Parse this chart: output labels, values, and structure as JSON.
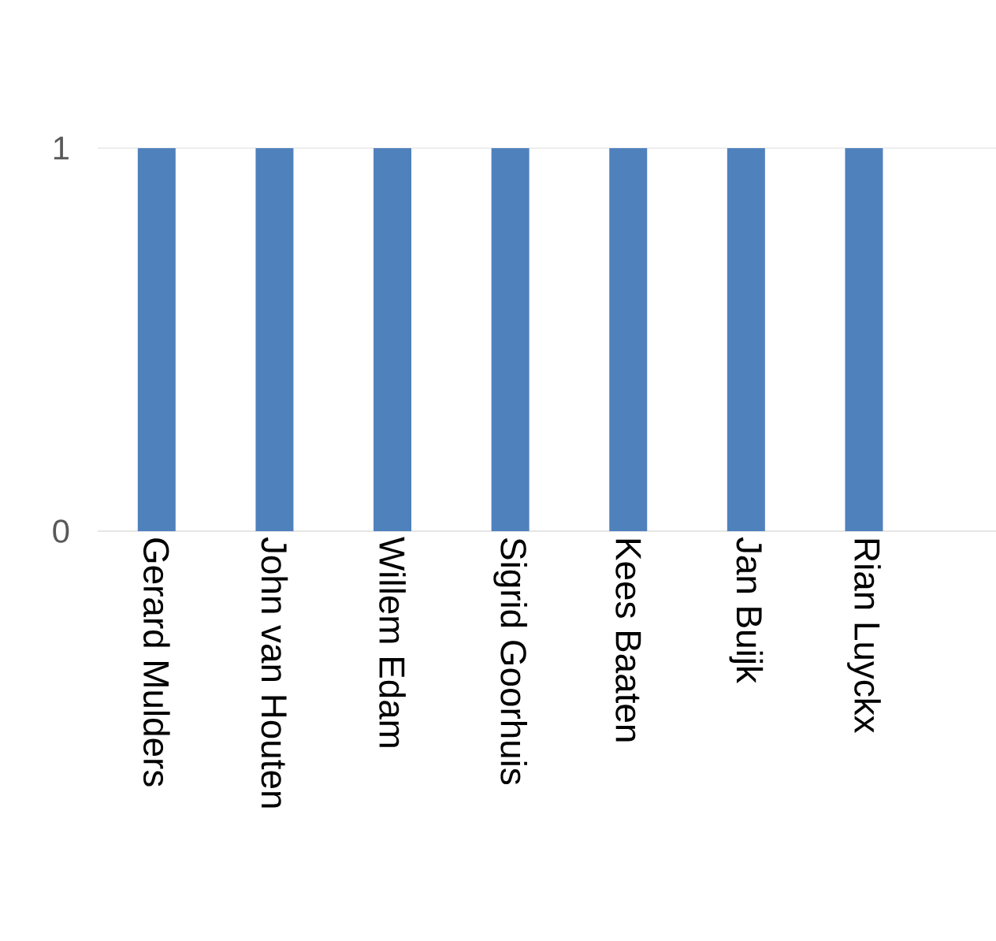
{
  "chart_data": {
    "type": "bar",
    "categories": [
      "Gerard Mulders",
      "John van Houten",
      "Willem Edam",
      "Sigrid Goorhuis",
      "Kees Baaten",
      "Jan Buijk",
      "Rian Luyckx"
    ],
    "values": [
      1,
      1,
      1,
      1,
      1,
      1,
      1
    ],
    "color": "#4f81bd",
    "ylim": [
      0,
      1
    ],
    "yticks": [
      0,
      1
    ],
    "grid": "y"
  }
}
